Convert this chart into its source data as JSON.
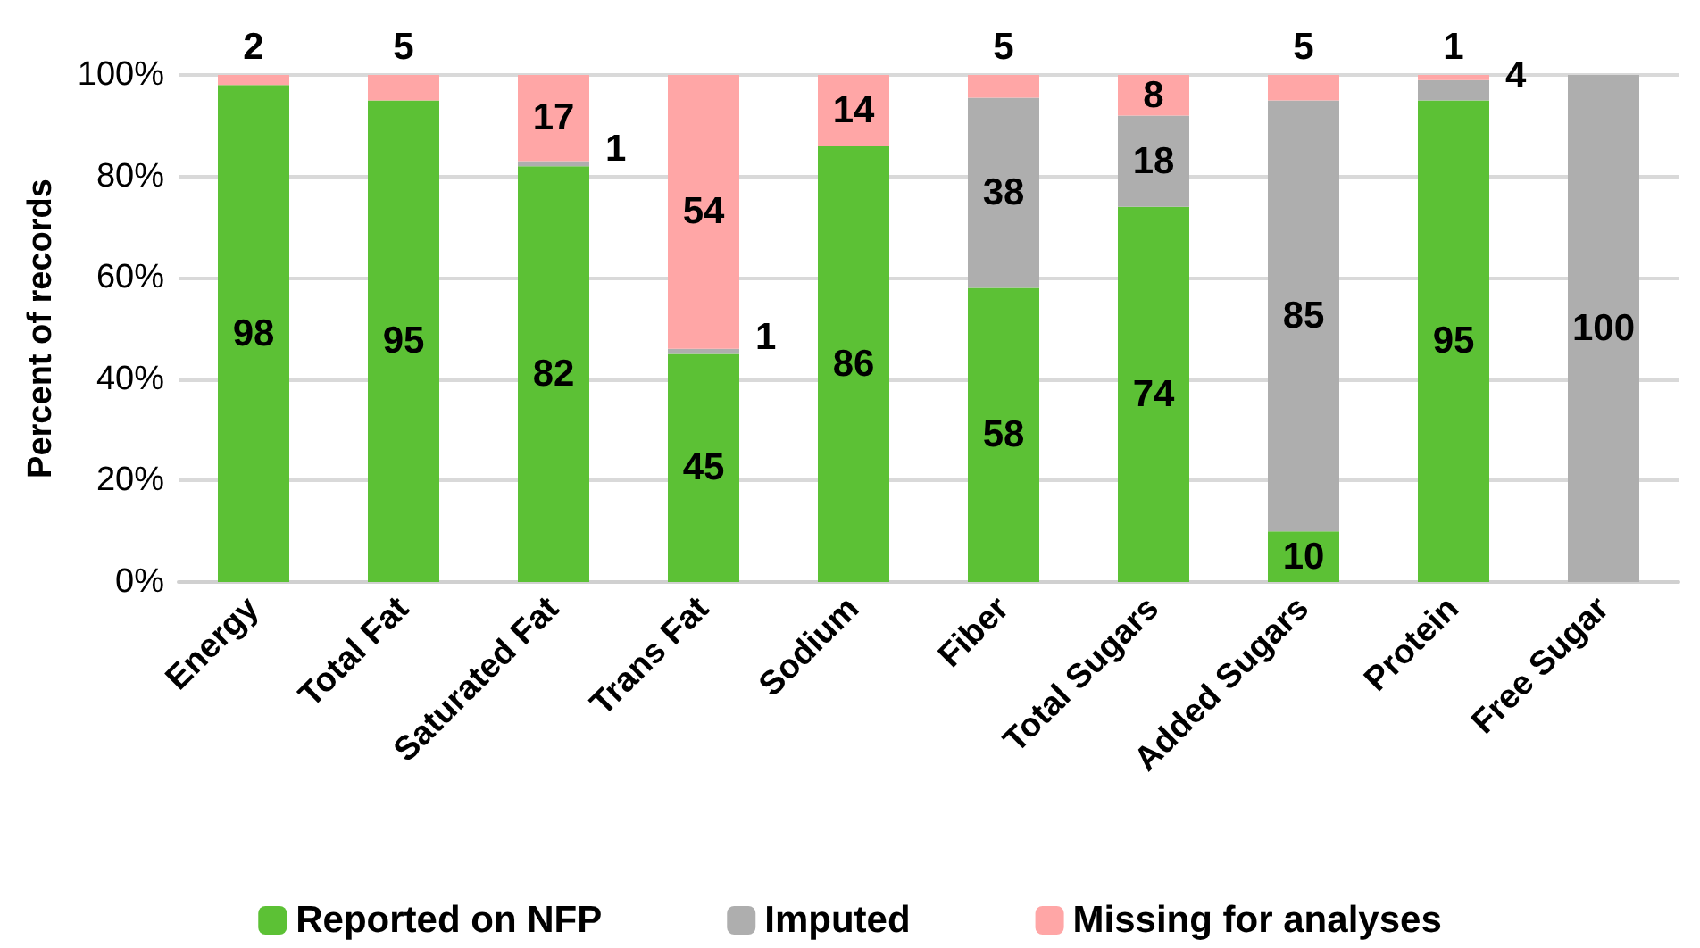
{
  "chart_data": {
    "type": "bar",
    "stacked": true,
    "ylabel": "Percent of records",
    "categories": [
      "Energy",
      "Total Fat",
      "Saturated Fat",
      "Trans Fat",
      "Sodium",
      "Fiber",
      "Total Sugars",
      "Added Sugars",
      "Protein",
      "Free Sugar"
    ],
    "series": [
      {
        "name": "Reported on NFP",
        "color": "#5cc135",
        "values": [
          98,
          95,
          82,
          45,
          86,
          58,
          74,
          10,
          95,
          null
        ],
        "value_labels": [
          "98",
          "95",
          "82",
          "45",
          "86",
          "58",
          "74",
          "10",
          "95",
          null
        ]
      },
      {
        "name": "Imputed",
        "color": "#aeaeae",
        "values": [
          null,
          null,
          1,
          1,
          null,
          37.5,
          18,
          85,
          4,
          100
        ],
        "value_labels": [
          null,
          null,
          "1",
          "1",
          null,
          "38",
          "18",
          "85",
          "4",
          "100"
        ]
      },
      {
        "name": "Missing for analyses",
        "color": "#ffa6a6",
        "values": [
          2,
          5,
          17,
          54,
          14,
          4.5,
          8,
          5,
          1,
          null
        ],
        "value_labels": [
          "2",
          "5",
          "17",
          "54",
          "14",
          "5",
          "8",
          "5",
          "1",
          null
        ]
      }
    ],
    "ylim": [
      0,
      100
    ],
    "yticks": [
      {
        "value": 0,
        "label": "0%"
      },
      {
        "value": 20,
        "label": "20%"
      },
      {
        "value": 40,
        "label": "40%"
      },
      {
        "value": 60,
        "label": "60%"
      },
      {
        "value": 80,
        "label": "80%"
      },
      {
        "value": 100,
        "label": "100%"
      }
    ],
    "grid": "y",
    "legend": "bottom"
  }
}
